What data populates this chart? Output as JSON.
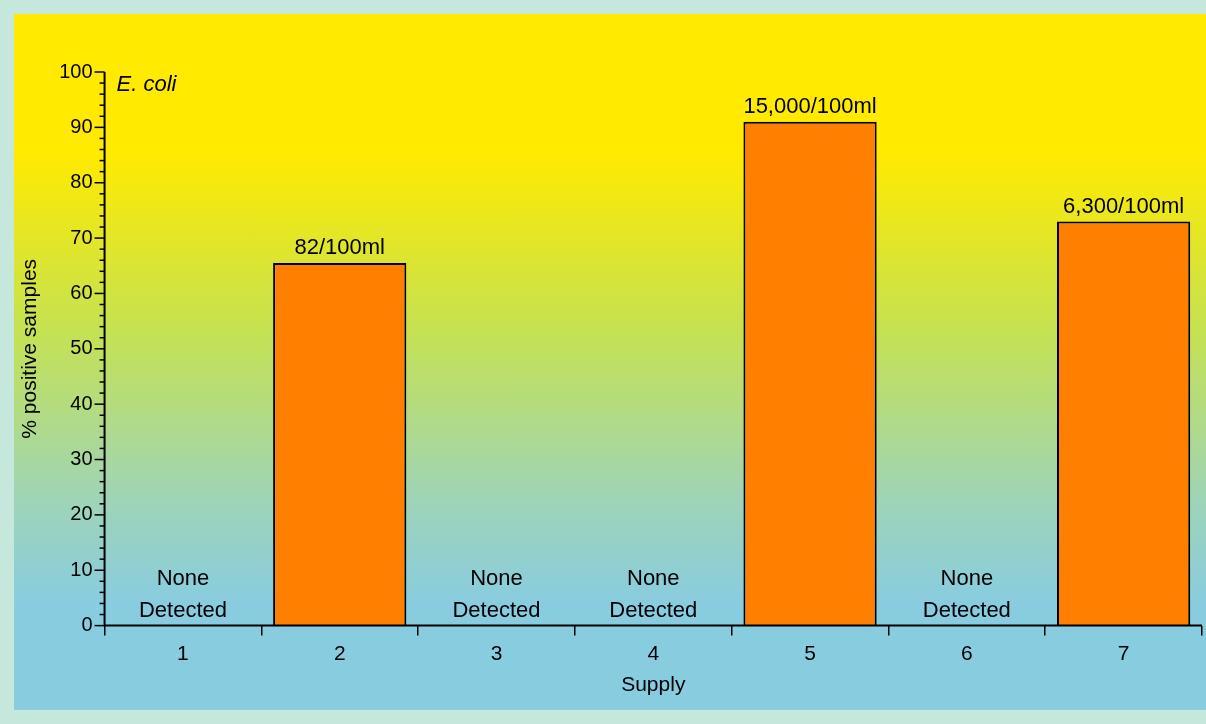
{
  "chart_data": {
    "type": "bar",
    "categories": [
      "1",
      "2",
      "3",
      "4",
      "5",
      "6",
      "7"
    ],
    "values": [
      0,
      65.5,
      0,
      0,
      91,
      0,
      73
    ],
    "value_labels": [
      "None Detected",
      "82/100ml",
      "None Detected",
      "None Detected",
      "15,000/100ml",
      "None Detected",
      "6,300/100ml"
    ],
    "color": "#ff8000",
    "xlabel": "Supply",
    "ylabel": "% positive samples",
    "annotations": [
      "E. coli"
    ],
    "ylim": [
      0,
      100
    ],
    "yticks": [
      0,
      {
        "value": 2,
        "label": null
      },
      {
        "value": 4,
        "label": null
      },
      {
        "value": 6,
        "label": null
      },
      {
        "value": 8,
        "label": null
      },
      10,
      {
        "value": 12,
        "label": null
      },
      {
        "value": 14,
        "label": null
      },
      {
        "value": 16,
        "label": null
      },
      {
        "value": 18,
        "label": null
      },
      20,
      {
        "value": 22,
        "label": null
      },
      {
        "value": 24,
        "label": null
      },
      {
        "value": 26,
        "label": null
      },
      {
        "value": 28,
        "label": null
      },
      30,
      {
        "value": 32,
        "label": null
      },
      {
        "value": 34,
        "label": null
      },
      {
        "value": 36,
        "label": null
      },
      {
        "value": 38,
        "label": null
      },
      40,
      {
        "value": 42,
        "label": null
      },
      {
        "value": 44,
        "label": null
      },
      {
        "value": 46,
        "label": null
      },
      {
        "value": 48,
        "label": null
      },
      50,
      {
        "value": 52,
        "label": null
      },
      {
        "value": 54,
        "label": null
      },
      {
        "value": 56,
        "label": null
      },
      {
        "value": 58,
        "label": null
      },
      60,
      {
        "value": 62,
        "label": null
      },
      {
        "value": 64,
        "label": null
      },
      {
        "value": 66,
        "label": null
      },
      {
        "value": 68,
        "label": null
      },
      70,
      {
        "value": 72,
        "label": null
      },
      {
        "value": 74,
        "label": null
      },
      {
        "value": 76,
        "label": null
      },
      {
        "value": 78,
        "label": null
      },
      80,
      {
        "value": 82,
        "label": null
      },
      {
        "value": 84,
        "label": null
      },
      {
        "value": 86,
        "label": null
      },
      {
        "value": 88,
        "label": null
      },
      90,
      {
        "value": 92,
        "label": null
      },
      {
        "value": 94,
        "label": null
      },
      {
        "value": 96,
        "label": null
      },
      {
        "value": 98,
        "label": null
      },
      100
    ],
    "grid": false,
    "legend": false
  }
}
